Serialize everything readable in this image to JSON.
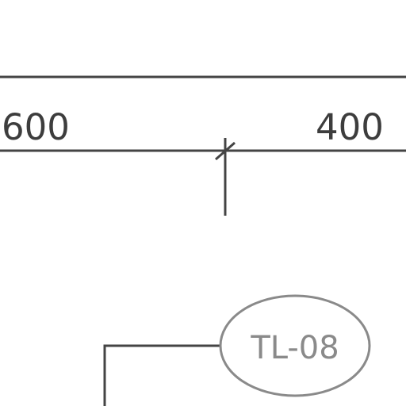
{
  "drawing": {
    "dimensions": {
      "left_value": "600",
      "right_value": "400"
    },
    "tag": {
      "label": "TL-08"
    },
    "colors": {
      "lines": "#444444",
      "tag_outline": "#8a8a8a",
      "tag_text": "#8a8a8a",
      "background": "#ffffff"
    }
  }
}
